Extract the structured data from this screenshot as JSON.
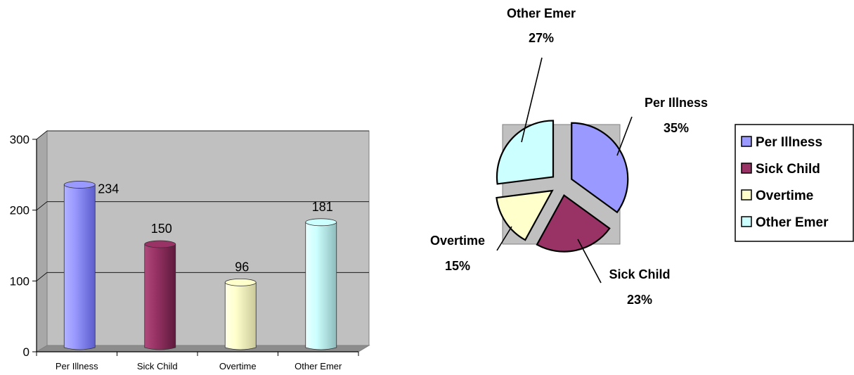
{
  "chart_data": [
    {
      "type": "bar",
      "categories": [
        "Per Illness",
        "Sick Child",
        "Overtime",
        "Other Emer"
      ],
      "values": [
        234,
        150,
        96,
        181
      ],
      "ylim": [
        0,
        300
      ],
      "yticks": [
        0,
        100,
        200,
        300
      ],
      "grid": true,
      "colors": [
        "#9999ff",
        "#993366",
        "#ffffcc",
        "#ccffff"
      ]
    },
    {
      "type": "pie",
      "labels": [
        "Per Illness",
        "Sick Child",
        "Overtime",
        "Other Emer"
      ],
      "values": [
        35,
        23,
        15,
        27
      ],
      "value_labels": [
        "35%",
        "23%",
        "15%",
        "27%"
      ],
      "legend": "right",
      "colors": [
        "#9999ff",
        "#993366",
        "#ffffcc",
        "#ccffff"
      ]
    }
  ]
}
